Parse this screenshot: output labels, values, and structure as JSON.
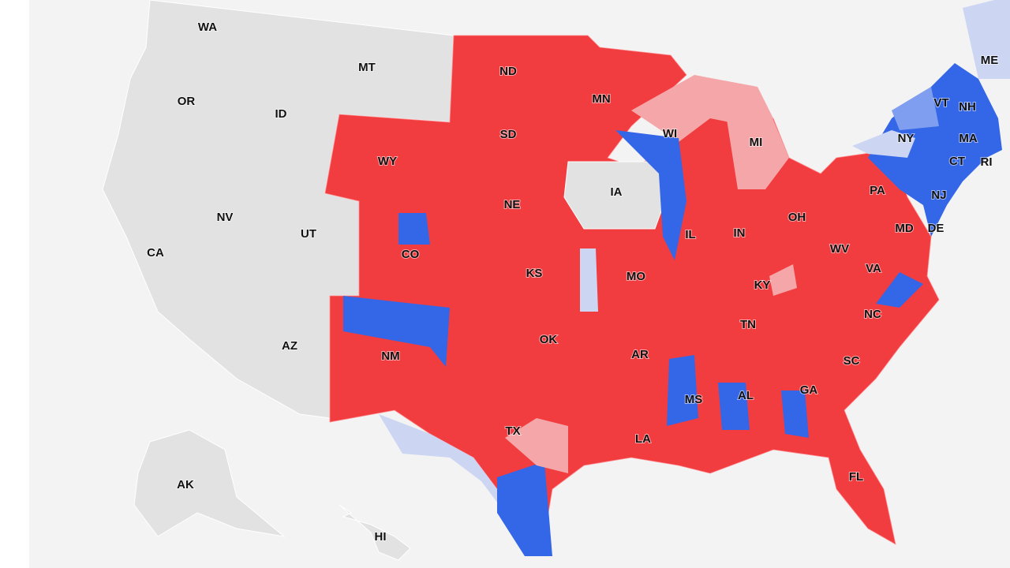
{
  "map": {
    "state_labels": [
      "WA",
      "MT",
      "OR",
      "ID",
      "ND",
      "MN",
      "WY",
      "SD",
      "WI",
      "MI",
      "NY",
      "ME",
      "VT",
      "NH",
      "MA",
      "CT",
      "RI",
      "IA",
      "NE",
      "PA",
      "NJ",
      "NV",
      "UT",
      "CA",
      "CO",
      "IL",
      "IN",
      "OH",
      "MD",
      "DE",
      "WV",
      "KS",
      "MO",
      "VA",
      "KY",
      "AZ",
      "NC",
      "TN",
      "OK",
      "NM",
      "AR",
      "SC",
      "MS",
      "AL",
      "GA",
      "TX",
      "LA",
      "FL",
      "AK",
      "HI"
    ]
  }
}
